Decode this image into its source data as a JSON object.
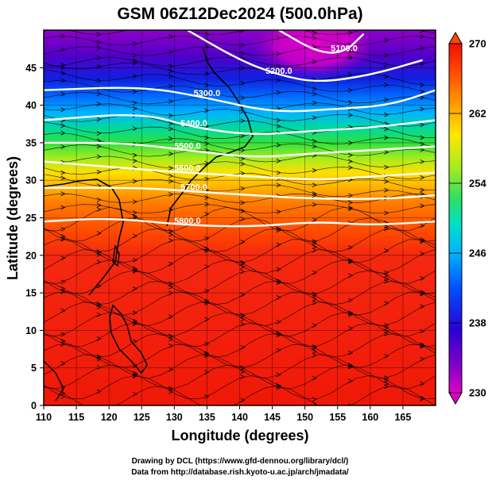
{
  "title": "GSM 06Z12Dec2024 (500.0hPa)",
  "xlabel": "Longitude (degrees)",
  "ylabel": "Latitude  (degrees)",
  "credit_line1": "Drawing by DCL (https://www.gfd-dennou.org/library/dcl/)",
  "credit_line2": "Data from http://database.rish.kyoto-u.ac.jp/arch/jmadata/",
  "x_ticks": [
    "110",
    "115",
    "120",
    "125",
    "130",
    "135",
    "140",
    "145",
    "150",
    "155",
    "160",
    "165"
  ],
  "y_ticks": [
    "0",
    "5",
    "10",
    "15",
    "20",
    "25",
    "30",
    "35",
    "40",
    "45"
  ],
  "colorbar_ticks": [
    "230",
    "238",
    "246",
    "254",
    "262",
    "270"
  ],
  "contour_labels": [
    "5100.0",
    "5200.0",
    "5300.0",
    "5400.0",
    "5500.0",
    "5600.0",
    "5700.0",
    "5800.0"
  ],
  "colors": {
    "bg": "#ffffff",
    "contour": "#ffffff",
    "streamline": "#000000"
  },
  "chart_data": {
    "type": "heatmap",
    "title": "GSM 06Z12Dec2024 (500.0hPa)",
    "xlabel": "Longitude (degrees)",
    "ylabel": "Latitude  (degrees)",
    "xlim": [
      110,
      170
    ],
    "ylim": [
      0,
      50
    ],
    "colorbar_range": [
      230,
      270
    ],
    "colorbar_ticks": [
      230,
      238,
      246,
      254,
      262,
      270
    ],
    "colormap": [
      "#e000c8",
      "#8a00c8",
      "#2a00d8",
      "#0050ff",
      "#00b4ff",
      "#00e0c8",
      "#30e060",
      "#a0ec20",
      "#ffe800",
      "#ff9000",
      "#ff4800",
      "#f21000"
    ],
    "field_by_latitude": [
      {
        "lat": 0,
        "value": 268
      },
      {
        "lat": 10,
        "value": 268
      },
      {
        "lat": 20,
        "value": 267
      },
      {
        "lat": 25,
        "value": 265
      },
      {
        "lat": 30,
        "value": 259
      },
      {
        "lat": 33,
        "value": 254
      },
      {
        "lat": 36,
        "value": 249
      },
      {
        "lat": 40,
        "value": 242
      },
      {
        "lat": 44,
        "value": 238
      },
      {
        "lat": 48,
        "value": 233
      },
      {
        "lat": 50,
        "value": 231
      }
    ],
    "contours": [
      {
        "value": 5100.0,
        "label": "5100.0",
        "points": [
          [
            146,
            50
          ],
          [
            152,
            47
          ],
          [
            156,
            47
          ],
          [
            159,
            49.5
          ]
        ]
      },
      {
        "value": 5200.0,
        "label": "5200.0",
        "points": [
          [
            132,
            50
          ],
          [
            140,
            46
          ],
          [
            146,
            44
          ],
          [
            152,
            43
          ],
          [
            160,
            44
          ],
          [
            168,
            46
          ]
        ]
      },
      {
        "value": 5300.0,
        "label": "5300.0",
        "points": [
          [
            110,
            42
          ],
          [
            125,
            42.5
          ],
          [
            135,
            41
          ],
          [
            145,
            39
          ],
          [
            155,
            39.5
          ],
          [
            163,
            40
          ],
          [
            170,
            42
          ]
        ]
      },
      {
        "value": 5400.0,
        "label": "5400.0",
        "points": [
          [
            110,
            38
          ],
          [
            125,
            39
          ],
          [
            133,
            37
          ],
          [
            142,
            36
          ],
          [
            150,
            36.5
          ],
          [
            160,
            37
          ],
          [
            170,
            38
          ]
        ]
      },
      {
        "value": 5500.0,
        "label": "5500.0",
        "points": [
          [
            110,
            35
          ],
          [
            122,
            35
          ],
          [
            132,
            34
          ],
          [
            142,
            33
          ],
          [
            150,
            33.5
          ],
          [
            160,
            34
          ],
          [
            170,
            34.5
          ]
        ]
      },
      {
        "value": 5600.0,
        "label": "5600.0",
        "points": [
          [
            110,
            32.5
          ],
          [
            124,
            31.5
          ],
          [
            132,
            31
          ],
          [
            142,
            30.5
          ],
          [
            152,
            30
          ],
          [
            160,
            30.5
          ],
          [
            170,
            31
          ]
        ]
      },
      {
        "value": 5700.0,
        "label": "5700.0",
        "points": [
          [
            110,
            29
          ],
          [
            125,
            29
          ],
          [
            133,
            28.5
          ],
          [
            142,
            28
          ],
          [
            152,
            27.5
          ],
          [
            162,
            27.5
          ],
          [
            170,
            28
          ]
        ]
      },
      {
        "value": 5800.0,
        "label": "5800.0",
        "points": [
          [
            110,
            24.5
          ],
          [
            120,
            25
          ],
          [
            132,
            24
          ],
          [
            142,
            23.8
          ],
          [
            152,
            24.5
          ],
          [
            160,
            24
          ],
          [
            170,
            24.5
          ]
        ]
      }
    ],
    "grid": true,
    "legend": "colorbar-right"
  }
}
